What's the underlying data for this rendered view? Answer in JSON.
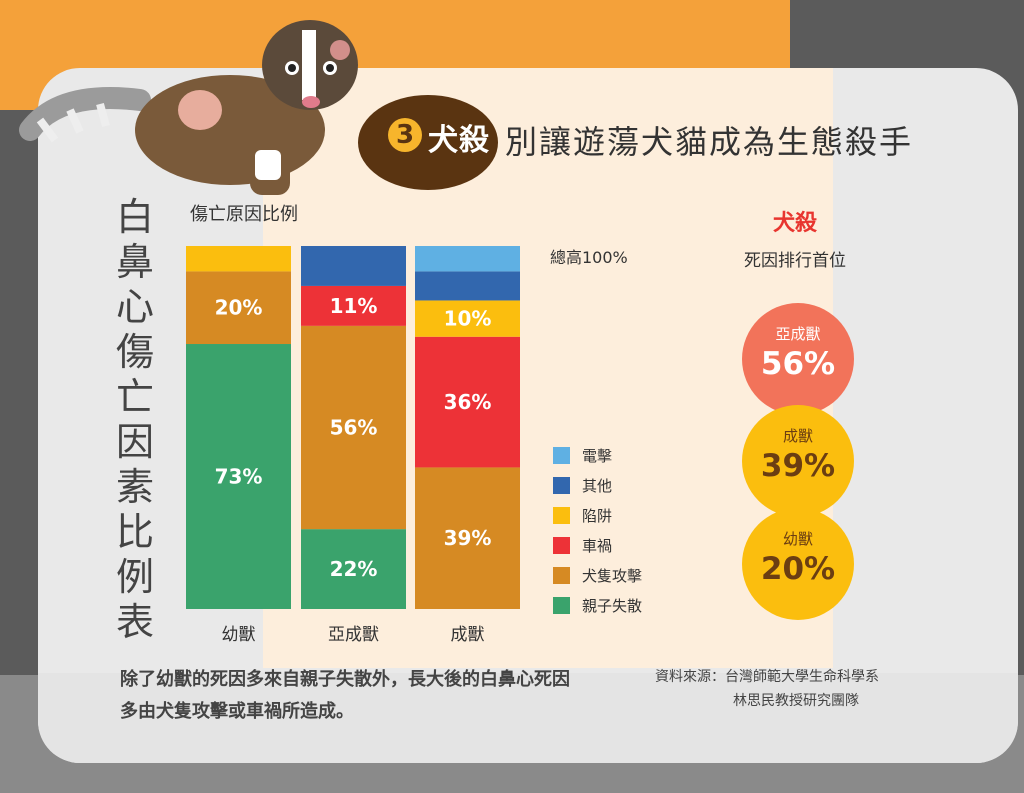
{
  "title": {
    "number": "3",
    "badge": "犬殺",
    "subtitle": "別讓遊蕩犬貓成為生態殺手"
  },
  "vertical_title": "白鼻心傷亡因素比例表",
  "chart_label": "傷亡原因比例",
  "total_label": "總高100%",
  "chart_data": {
    "type": "bar",
    "stacked": true,
    "categories": [
      "幼獸",
      "亞成獸",
      "成獸"
    ],
    "ylim": [
      0,
      100
    ],
    "series": [
      {
        "name": "親子失散",
        "color": "#3aa36c",
        "values": [
          73,
          22,
          0
        ],
        "labels": [
          "73%",
          "22%",
          ""
        ]
      },
      {
        "name": "犬隻攻擊",
        "color": "#d68a23",
        "values": [
          20,
          56,
          39
        ],
        "labels": [
          "20%",
          "56%",
          "39%"
        ]
      },
      {
        "name": "車禍",
        "color": "#ed3237",
        "values": [
          0,
          11,
          36
        ],
        "labels": [
          "",
          "11%",
          "36%"
        ]
      },
      {
        "name": "陷阱",
        "color": "#fbbe0e",
        "values": [
          7,
          0,
          10
        ],
        "labels": [
          "",
          "",
          "10%"
        ]
      },
      {
        "name": "其他",
        "color": "#3267ae",
        "values": [
          0,
          11,
          8
        ],
        "labels": [
          "",
          "",
          ""
        ]
      },
      {
        "name": "電擊",
        "color": "#5fb0e3",
        "values": [
          0,
          0,
          7
        ],
        "labels": [
          "",
          "",
          ""
        ]
      }
    ]
  },
  "legend": [
    {
      "name": "電擊",
      "color": "#5fb0e3"
    },
    {
      "name": "其他",
      "color": "#3267ae"
    },
    {
      "name": "陷阱",
      "color": "#fbbe0e"
    },
    {
      "name": "車禍",
      "color": "#ed3237"
    },
    {
      "name": "犬隻攻擊",
      "color": "#d68a23"
    },
    {
      "name": "親子失散",
      "color": "#3aa36c"
    }
  ],
  "ranking": {
    "title": "犬殺",
    "subtitle": "死因排行首位",
    "items": [
      {
        "label": "亞成獸",
        "value": "56%",
        "color": "#f2735a",
        "text_color": "#ffffff"
      },
      {
        "label": "成獸",
        "value": "39%",
        "color": "#fbbe0e",
        "text_color": "#6b3e12"
      },
      {
        "label": "幼獸",
        "value": "20%",
        "color": "#fbbe0e",
        "text_color": "#6b3e12"
      }
    ]
  },
  "footnote": "除了幼獸的死因多來自親子失散外，長大後的白鼻心死因多由犬隻攻擊或車禍所造成。",
  "source": {
    "line1": "資料來源：台灣師範大學生命科學系",
    "line2": "林思民教授研究團隊"
  }
}
